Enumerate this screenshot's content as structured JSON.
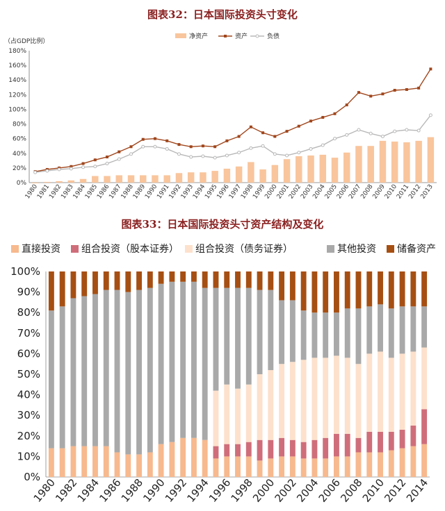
{
  "chart_data": [
    {
      "type": "bar+line",
      "title": "图表32：日本国际投资头寸变化",
      "unit_label": "（占GDP比例）",
      "ylim": [
        0,
        180
      ],
      "yticks": [
        "0%",
        "20%",
        "40%",
        "60%",
        "80%",
        "100%",
        "120%",
        "140%",
        "160%",
        "180%"
      ],
      "categories": [
        "1980",
        "1981",
        "1982",
        "1983",
        "1984",
        "1985",
        "1986",
        "1987",
        "1988",
        "1989",
        "1990",
        "1991",
        "1992",
        "1993",
        "1994",
        "1995",
        "1996",
        "1997",
        "1998",
        "1999",
        "2000",
        "2001",
        "2002",
        "2003",
        "2004",
        "2005",
        "2006",
        "2007",
        "2008",
        "2009",
        "2010",
        "2011",
        "2012",
        "2013"
      ],
      "legend": [
        "净资产",
        "资产",
        "负债"
      ],
      "series": [
        {
          "name": "净资产",
          "kind": "bar",
          "color": "#f9c59c",
          "values": [
            -1,
            1,
            2,
            3,
            5,
            9,
            9,
            10,
            10,
            10,
            10,
            10,
            13,
            14,
            14,
            16,
            19,
            22,
            28,
            18,
            24,
            32,
            36,
            37,
            38,
            34,
            41,
            50,
            50,
            57,
            56,
            55,
            57,
            62
          ]
        },
        {
          "name": "资产",
          "kind": "line",
          "color": "#a0461c",
          "values": [
            15,
            18,
            20,
            22,
            26,
            31,
            35,
            42,
            49,
            59,
            60,
            57,
            52,
            49,
            50,
            49,
            57,
            63,
            76,
            68,
            63,
            70,
            77,
            84,
            89,
            94,
            106,
            123,
            118,
            121,
            126,
            127,
            129,
            155
          ]
        },
        {
          "name": "负债",
          "kind": "line",
          "color": "#b8b8b8",
          "values": [
            14,
            16,
            18,
            19,
            21,
            22,
            26,
            32,
            39,
            49,
            49,
            46,
            39,
            35,
            36,
            34,
            37,
            41,
            47,
            50,
            39,
            37,
            41,
            46,
            51,
            60,
            65,
            72,
            67,
            63,
            70,
            72,
            71,
            92
          ]
        }
      ]
    },
    {
      "type": "stacked-bar",
      "title": "图表33：日本国际投资头寸资产结构及变化",
      "ylim": [
        0,
        100
      ],
      "yticks": [
        "0%",
        "10%",
        "20%",
        "30%",
        "40%",
        "50%",
        "60%",
        "70%",
        "80%",
        "90%",
        "100%"
      ],
      "categories": [
        "1980",
        "1981",
        "1982",
        "1983",
        "1984",
        "1985",
        "1986",
        "1987",
        "1988",
        "1989",
        "1990",
        "1991",
        "1992",
        "1993",
        "1994",
        "1995",
        "1996",
        "1997",
        "1998",
        "1999",
        "2000",
        "2001",
        "2002",
        "2003",
        "2004",
        "2005",
        "2006",
        "2007",
        "2008",
        "2009",
        "2010",
        "2011",
        "2012",
        "2013",
        "2014"
      ],
      "xtick_labels": [
        "1980",
        "1982",
        "1984",
        "1986",
        "1988",
        "1990",
        "1992",
        "1994",
        "1996",
        "1998",
        "2000",
        "2002",
        "2004",
        "2006",
        "2008",
        "2010",
        "2012",
        "2014"
      ],
      "series": [
        {
          "name": "直接投资",
          "color": "#f7b98e",
          "values": [
            14,
            14,
            15,
            15,
            15,
            15,
            12,
            11,
            11,
            12,
            16,
            17,
            19,
            19,
            18,
            9,
            10,
            10,
            10,
            8,
            9,
            10,
            10,
            9,
            9,
            9,
            10,
            10,
            12,
            12,
            12,
            13,
            14,
            15,
            16
          ]
        },
        {
          "name": "组合投资（股本证券）",
          "color": "#cf6e7a",
          "values": [
            0,
            0,
            0,
            0,
            0,
            0,
            0,
            0,
            0,
            0,
            0,
            0,
            0,
            0,
            0,
            6,
            6,
            6,
            7,
            10,
            9,
            9,
            8,
            8,
            9,
            10,
            11,
            11,
            7,
            10,
            10,
            9,
            9,
            10,
            17
          ]
        },
        {
          "name": "组合投资（债务证券）",
          "color": "#fde1cc",
          "values": [
            0,
            0,
            0,
            0,
            0,
            0,
            0,
            0,
            0,
            0,
            0,
            0,
            0,
            0,
            0,
            27,
            29,
            27,
            28,
            32,
            34,
            36,
            38,
            40,
            40,
            39,
            38,
            37,
            36,
            38,
            39,
            36,
            37,
            36,
            30
          ]
        },
        {
          "name": "其他投资",
          "color": "#a9a9a9",
          "values": [
            67,
            69,
            72,
            73,
            74,
            76,
            79,
            79,
            80,
            80,
            78,
            78,
            76,
            76,
            74,
            50,
            47,
            49,
            47,
            41,
            39,
            31,
            30,
            24,
            22,
            22,
            21,
            24,
            27,
            23,
            23,
            24,
            23,
            22,
            20
          ]
        },
        {
          "name": "储备资产",
          "color": "#a64f13",
          "values": [
            19,
            17,
            13,
            12,
            11,
            9,
            9,
            10,
            9,
            8,
            6,
            5,
            5,
            5,
            8,
            8,
            8,
            8,
            8,
            9,
            9,
            14,
            14,
            19,
            20,
            20,
            20,
            18,
            18,
            17,
            16,
            18,
            17,
            17,
            17
          ]
        }
      ]
    }
  ]
}
